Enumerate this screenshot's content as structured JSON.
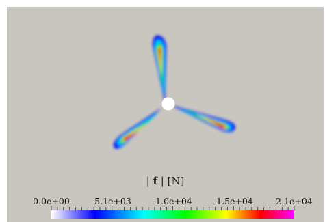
{
  "plot": {
    "background_color": "#c8c6bf",
    "hub_color": "#ffffff"
  },
  "colorbar": {
    "title_prefix": "| ",
    "title_bold": "f",
    "title_suffix": " | [N]",
    "labels": [
      "0.0e+00",
      "5.1e+03",
      "1.0e+04",
      "1.5e+04",
      "2.1e+04"
    ],
    "colors": [
      "#ffffff",
      "#0000ff",
      "#00ffff",
      "#00ff00",
      "#ffff00",
      "#ff0000",
      "#ff00ff"
    ],
    "range": [
      0,
      21000
    ]
  }
}
